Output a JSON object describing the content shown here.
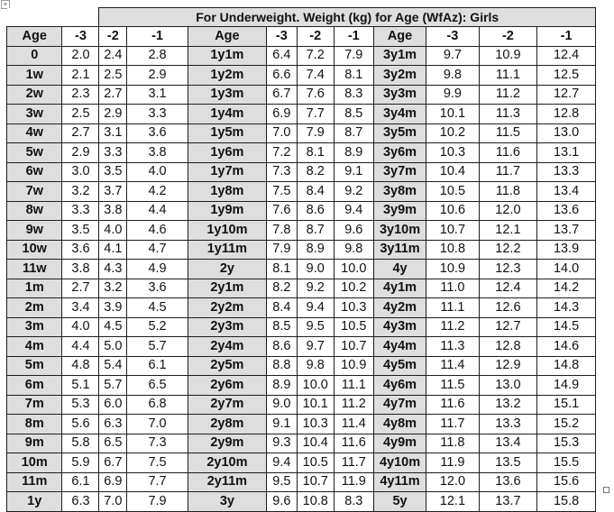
{
  "title": "For Underweight. Weight (kg) for Age (WfAz): Girls",
  "headers": [
    "Age",
    "-3",
    "-2",
    "-1",
    "Age",
    "-3",
    "-2",
    "-1",
    "Age",
    "-3",
    "-2",
    "-1"
  ],
  "rows": [
    [
      "0",
      "2.0",
      "2.4",
      "2.8",
      "1y1m",
      "6.4",
      "7.2",
      "7.9",
      "3y1m",
      "9.7",
      "10.9",
      "12.4"
    ],
    [
      "1w",
      "2.1",
      "2.5",
      "2.9",
      "1y2m",
      "6.6",
      "7.4",
      "8.1",
      "3y2m",
      "9.8",
      "11.1",
      "12.5"
    ],
    [
      "2w",
      "2.3",
      "2.7",
      "3.1",
      "1y3m",
      "6.7",
      "7.6",
      "8.3",
      "3y3m",
      "9.9",
      "11.2",
      "12.7"
    ],
    [
      "3w",
      "2.5",
      "2.9",
      "3.3",
      "1y4m",
      "6.9",
      "7.7",
      "8.5",
      "3y4m",
      "10.1",
      "11.3",
      "12.8"
    ],
    [
      "4w",
      "2.7",
      "3.1",
      "3.6",
      "1y5m",
      "7.0",
      "7.9",
      "8.7",
      "3y5m",
      "10.2",
      "11.5",
      "13.0"
    ],
    [
      "5w",
      "2.9",
      "3.3",
      "3.8",
      "1y6m",
      "7.2",
      "8.1",
      "8.9",
      "3y6m",
      "10.3",
      "11.6",
      "13.1"
    ],
    [
      "6w",
      "3.0",
      "3.5",
      "4.0",
      "1y7m",
      "7.3",
      "8.2",
      "9.1",
      "3y7m",
      "10.4",
      "11.7",
      "13.3"
    ],
    [
      "7w",
      "3.2",
      "3.7",
      "4.2",
      "1y8m",
      "7.5",
      "8.4",
      "9.2",
      "3y8m",
      "10.5",
      "11.8",
      "13.4"
    ],
    [
      "8w",
      "3.3",
      "3.8",
      "4.4",
      "1y9m",
      "7.6",
      "8.6",
      "9.4",
      "3y9m",
      "10.6",
      "12.0",
      "13.6"
    ],
    [
      "9w",
      "3.5",
      "4.0",
      "4.6",
      "1y10m",
      "7.8",
      "8.7",
      "9.6",
      "3y10m",
      "10.7",
      "12.1",
      "13.7"
    ],
    [
      "10w",
      "3.6",
      "4.1",
      "4.7",
      "1y11m",
      "7.9",
      "8.9",
      "9.8",
      "3y11m",
      "10.8",
      "12.2",
      "13.9"
    ],
    [
      "11w",
      "3.8",
      "4.3",
      "4.9",
      "2y",
      "8.1",
      "9.0",
      "10.0",
      "4y",
      "10.9",
      "12.3",
      "14.0"
    ],
    [
      "1m",
      "2.7",
      "3.2",
      "3.6",
      "2y1m",
      "8.2",
      "9.2",
      "10.2",
      "4y1m",
      "11.0",
      "12.4",
      "14.2"
    ],
    [
      "2m",
      "3.4",
      "3.9",
      "4.5",
      "2y2m",
      "8.4",
      "9.4",
      "10.3",
      "4y2m",
      "11.1",
      "12.6",
      "14.3"
    ],
    [
      "3m",
      "4.0",
      "4.5",
      "5.2",
      "2y3m",
      "8.5",
      "9.5",
      "10.5",
      "4y3m",
      "11.2",
      "12.7",
      "14.5"
    ],
    [
      "4m",
      "4.4",
      "5.0",
      "5.7",
      "2y4m",
      "8.6",
      "9.7",
      "10.7",
      "4y4m",
      "11.3",
      "12.8",
      "14.6"
    ],
    [
      "5m",
      "4.8",
      "5.4",
      "6.1",
      "2y5m",
      "8.8",
      "9.8",
      "10.9",
      "4y5m",
      "11.4",
      "12.9",
      "14.8"
    ],
    [
      "6m",
      "5.1",
      "5.7",
      "6.5",
      "2y6m",
      "8.9",
      "10.0",
      "11.1",
      "4y6m",
      "11.5",
      "13.0",
      "14.9"
    ],
    [
      "7m",
      "5.3",
      "6.0",
      "6.8",
      "2y7m",
      "9.0",
      "10.1",
      "11.2",
      "4y7m",
      "11.6",
      "13.2",
      "15.1"
    ],
    [
      "8m",
      "5.6",
      "6.3",
      "7.0",
      "2y8m",
      "9.1",
      "10.3",
      "11.4",
      "4y8m",
      "11.7",
      "13.3",
      "15.2"
    ],
    [
      "9m",
      "5.8",
      "6.5",
      "7.3",
      "2y9m",
      "9.3",
      "10.4",
      "11.6",
      "4y9m",
      "11.8",
      "13.4",
      "15.3"
    ],
    [
      "10m",
      "5.9",
      "6.7",
      "7.5",
      "2y10m",
      "9.4",
      "10.5",
      "11.7",
      "4y10m",
      "11.9",
      "13.5",
      "15.5"
    ],
    [
      "11m",
      "6.1",
      "6.9",
      "7.7",
      "2y11m",
      "9.5",
      "10.7",
      "11.9",
      "4y11m",
      "12.0",
      "13.6",
      "15.6"
    ],
    [
      "1y",
      "6.3",
      "7.0",
      "7.9",
      "3y",
      "9.6",
      "10.8",
      "8.3",
      "5y",
      "12.1",
      "13.7",
      "15.8"
    ]
  ],
  "icons": {
    "top_left": "move-handle-icon",
    "bottom_right": "resize-handle-icon"
  },
  "colors": {
    "header_fill": "#dedede",
    "border": "#1e1e1e",
    "background": "#ffffff"
  }
}
